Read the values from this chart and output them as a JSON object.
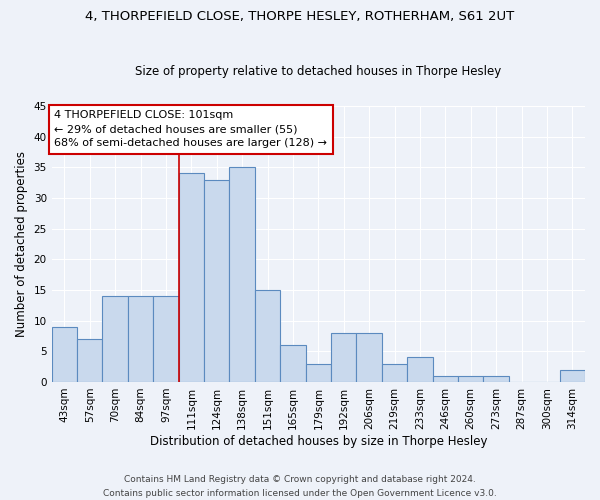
{
  "title": "4, THORPEFIELD CLOSE, THORPE HESLEY, ROTHERHAM, S61 2UT",
  "subtitle": "Size of property relative to detached houses in Thorpe Hesley",
  "xlabel": "Distribution of detached houses by size in Thorpe Hesley",
  "ylabel": "Number of detached properties",
  "categories": [
    "43sqm",
    "57sqm",
    "70sqm",
    "84sqm",
    "97sqm",
    "111sqm",
    "124sqm",
    "138sqm",
    "151sqm",
    "165sqm",
    "179sqm",
    "192sqm",
    "206sqm",
    "219sqm",
    "233sqm",
    "246sqm",
    "260sqm",
    "273sqm",
    "287sqm",
    "300sqm",
    "314sqm"
  ],
  "values": [
    9,
    7,
    14,
    14,
    14,
    34,
    33,
    35,
    15,
    6,
    3,
    8,
    8,
    3,
    4,
    1,
    1,
    1,
    0,
    0,
    2
  ],
  "bar_color": "#c9d9ed",
  "bar_edge_color": "#5b8abf",
  "ylim": [
    0,
    45
  ],
  "yticks": [
    0,
    5,
    10,
    15,
    20,
    25,
    30,
    35,
    40,
    45
  ],
  "property_line_index": 4.5,
  "annotation_line1": "4 THORPEFIELD CLOSE: 101sqm",
  "annotation_line2": "← 29% of detached houses are smaller (55)",
  "annotation_line3": "68% of semi-detached houses are larger (128) →",
  "footer_line1": "Contains HM Land Registry data © Crown copyright and database right 2024.",
  "footer_line2": "Contains public sector information licensed under the Open Government Licence v3.0.",
  "background_color": "#eef2f9",
  "grid_color": "#ffffff",
  "annotation_box_color": "#ffffff",
  "annotation_box_edge": "#cc0000",
  "property_line_color": "#cc0000",
  "title_fontsize": 9.5,
  "subtitle_fontsize": 8.5,
  "xlabel_fontsize": 8.5,
  "ylabel_fontsize": 8.5,
  "tick_fontsize": 7.5,
  "annotation_fontsize": 8.0,
  "footer_fontsize": 6.5
}
